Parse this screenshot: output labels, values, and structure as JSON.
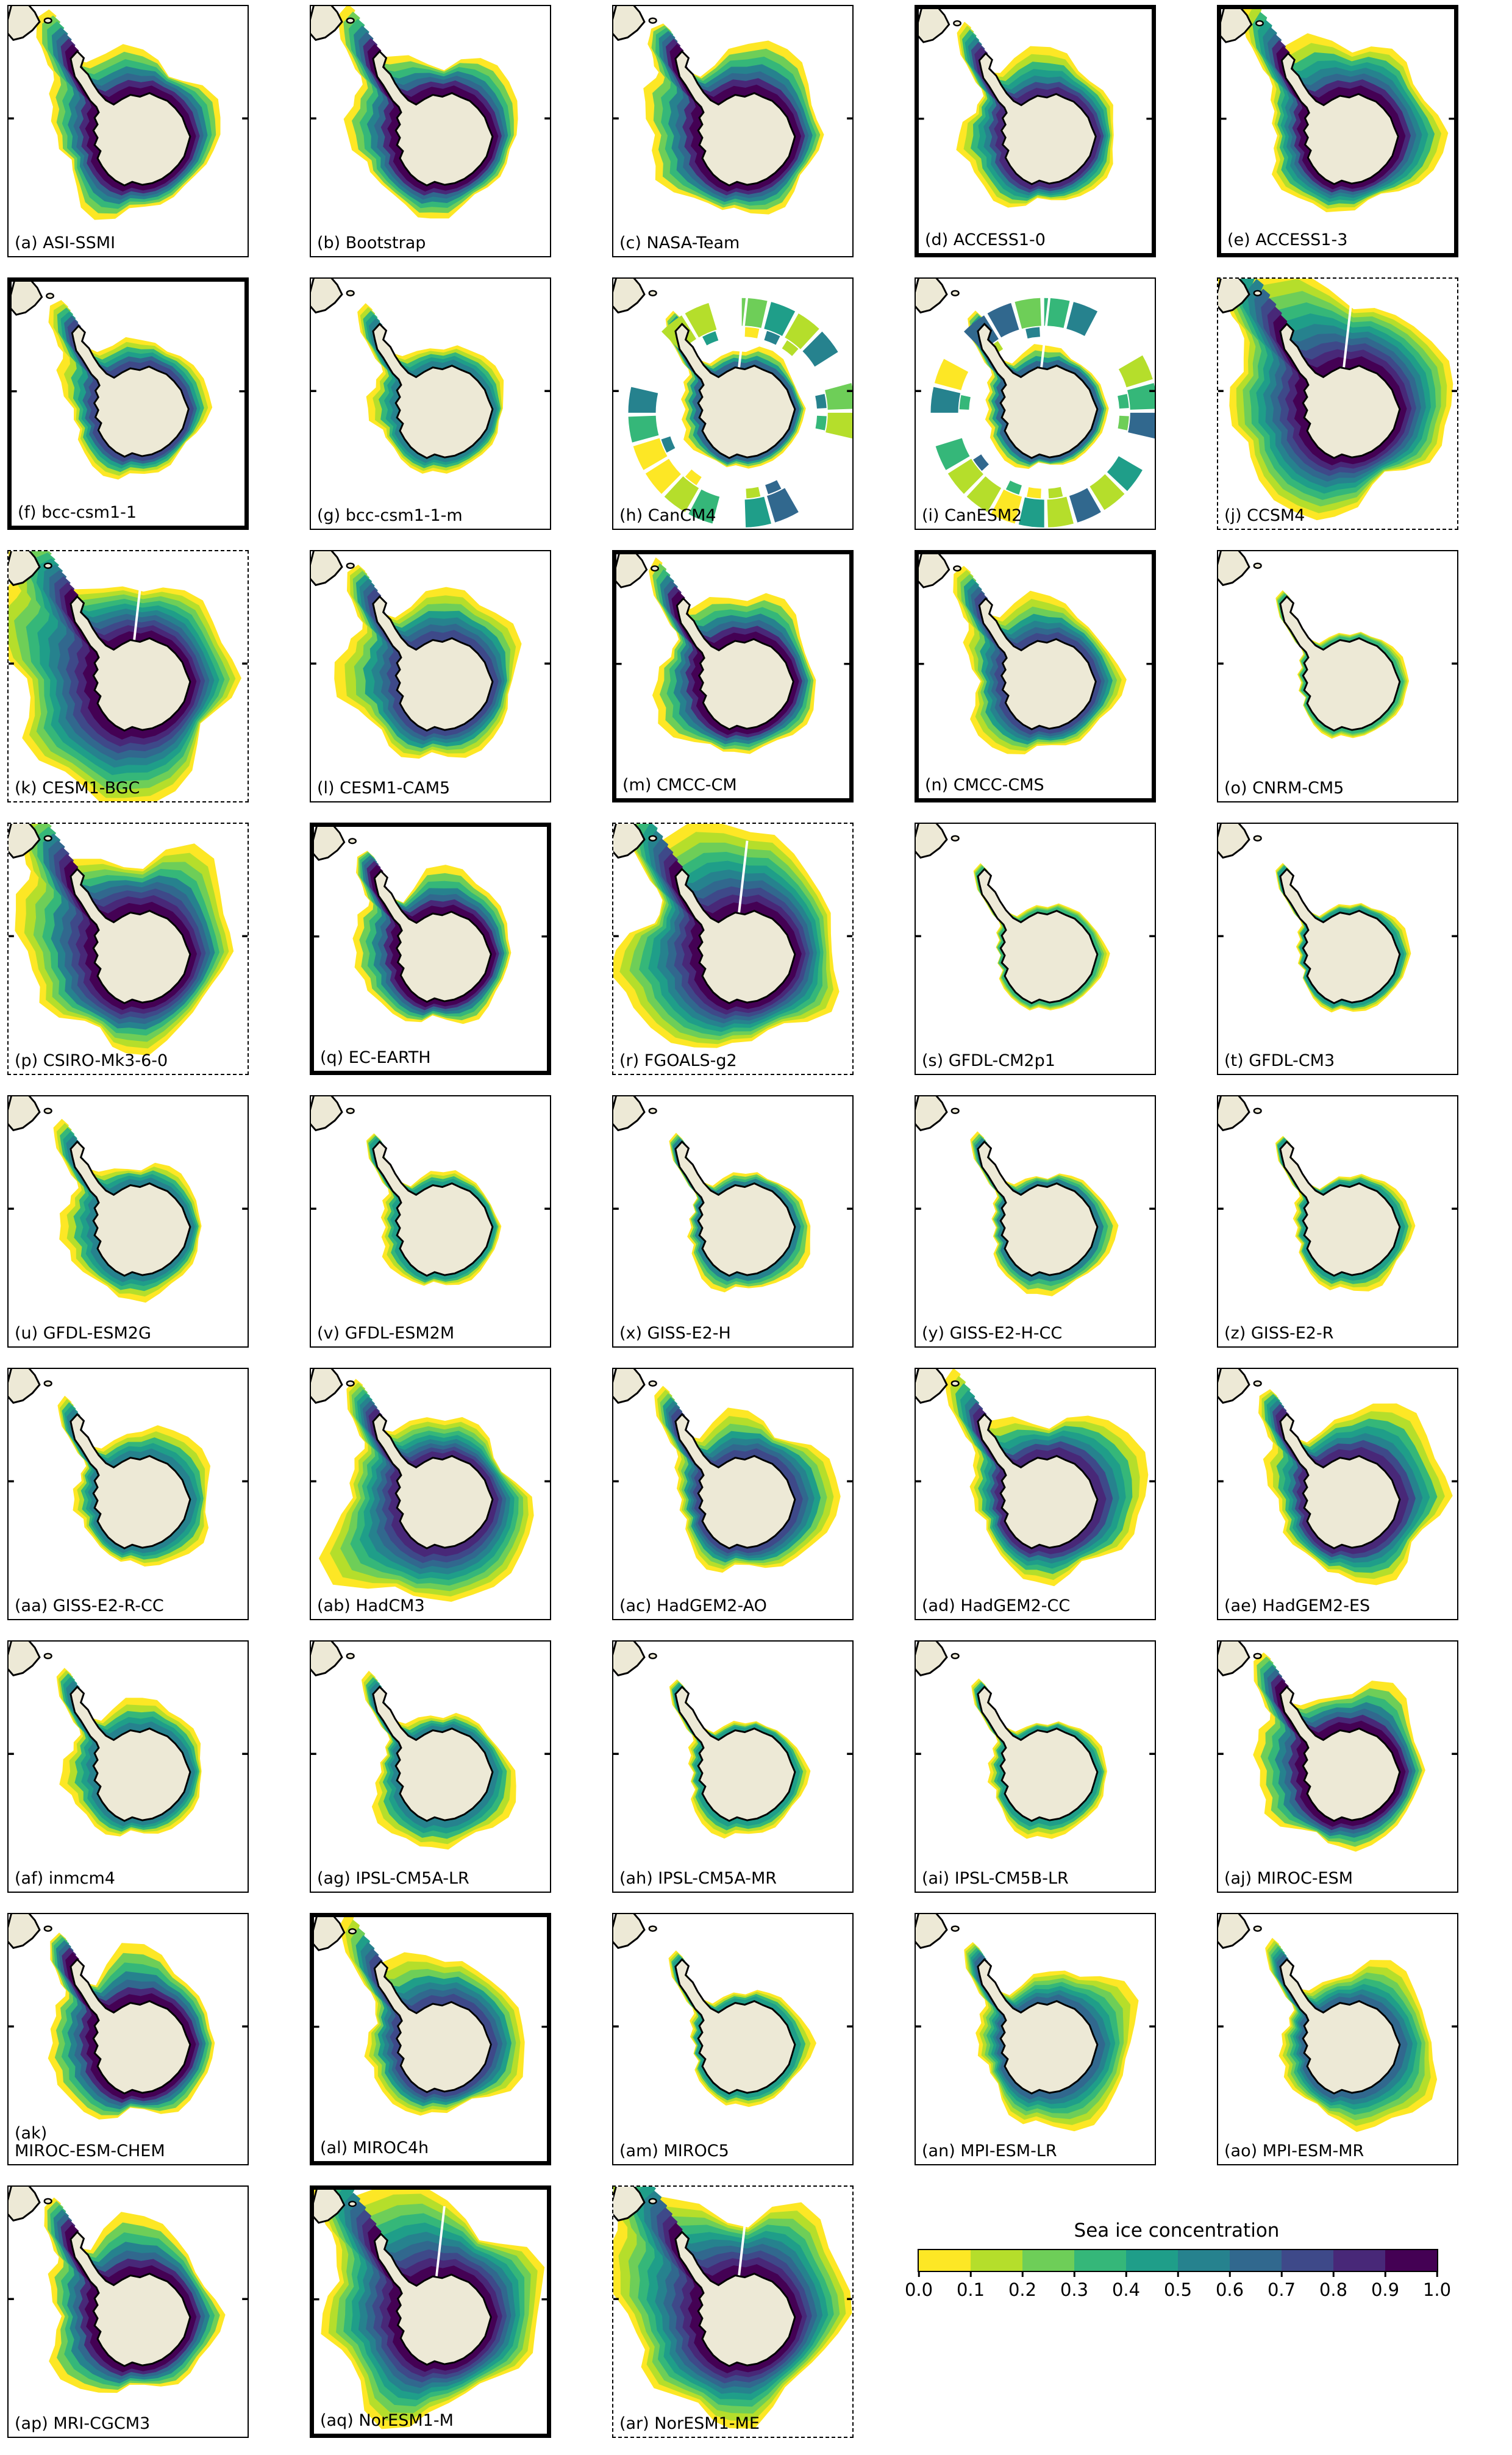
{
  "chart_data": {
    "type": "heatmap",
    "subtype": "polar-stereographic sea ice concentration maps (Antarctica)",
    "title": "Sea ice concentration",
    "value_range": [
      0.0,
      1.0
    ],
    "colormap": "viridis reversed (yellow = 0.0, dark purple = 1.0)",
    "land_color": "#ede9d6",
    "coast_color": "#000000",
    "grid": {
      "columns": 5,
      "rows": 9,
      "panel_count": 43
    },
    "colorbar": {
      "title": "Sea ice concentration",
      "position": "bottom-right",
      "tick_labels": [
        "0.0",
        "0.1",
        "0.2",
        "0.3",
        "0.4",
        "0.5",
        "0.6",
        "0.7",
        "0.8",
        "0.9",
        "1.0"
      ],
      "colors": [
        "#fde725",
        "#b5de2b",
        "#6ece58",
        "#35b779",
        "#1f9e89",
        "#26828e",
        "#31688e",
        "#3e4989",
        "#482878",
        "#440154"
      ]
    },
    "panels": [
      {
        "id": "a",
        "label": "(a) ASI-SSMI",
        "frame": "solid",
        "style": "rings",
        "extent": 0.5,
        "max_concentration": 1.0,
        "bias": "nw"
      },
      {
        "id": "b",
        "label": "(b) Bootstrap",
        "frame": "solid",
        "style": "rings",
        "extent": 0.5,
        "max_concentration": 1.0,
        "bias": "nw"
      },
      {
        "id": "c",
        "label": "(c) NASA-Team",
        "frame": "solid",
        "style": "rings",
        "extent": 0.55,
        "max_concentration": 1.0,
        "bias": "nw"
      },
      {
        "id": "d",
        "label": "(d) ACCESS1-0",
        "frame": "thick",
        "style": "rings",
        "extent": 0.45,
        "max_concentration": 0.9,
        "bias": "nw"
      },
      {
        "id": "e",
        "label": "(e) ACCESS1-3",
        "frame": "thick",
        "style": "rings",
        "extent": 0.6,
        "max_concentration": 1.0,
        "bias": "n"
      },
      {
        "id": "f",
        "label": "(f) bcc-csm1-1",
        "frame": "thick",
        "style": "rings",
        "extent": 0.35,
        "max_concentration": 0.8,
        "bias": "nw"
      },
      {
        "id": "g",
        "label": "(g) bcc-csm1-1-m",
        "frame": "solid",
        "style": "rings",
        "extent": 0.25,
        "max_concentration": 0.5,
        "bias": "nw"
      },
      {
        "id": "h",
        "label": "(h) CanCM4",
        "frame": "solid",
        "style": "patchy",
        "extent": 0.55,
        "max_concentration": 0.8,
        "bias": "nw"
      },
      {
        "id": "i",
        "label": "(i) CanESM2",
        "frame": "solid",
        "style": "patchy",
        "extent": 0.55,
        "max_concentration": 0.8,
        "bias": "nw"
      },
      {
        "id": "j",
        "label": "(j) CCSM4",
        "frame": "dashed",
        "style": "rings",
        "extent": 0.95,
        "max_concentration": 1.0,
        "bias": "nw"
      },
      {
        "id": "k",
        "label": "(k) CESM1-BGC",
        "frame": "dashed",
        "style": "rings",
        "extent": 0.95,
        "max_concentration": 1.0,
        "bias": "w"
      },
      {
        "id": "l",
        "label": "(l) CESM1-CAM5",
        "frame": "solid",
        "style": "rings",
        "extent": 0.55,
        "max_concentration": 0.8,
        "bias": "nw"
      },
      {
        "id": "m",
        "label": "(m) CMCC-CM",
        "frame": "thick",
        "style": "rings",
        "extent": 0.5,
        "max_concentration": 1.0,
        "bias": "nw"
      },
      {
        "id": "n",
        "label": "(n) CMCC-CMS",
        "frame": "thick",
        "style": "rings",
        "extent": 0.45,
        "max_concentration": 0.8,
        "bias": "nw"
      },
      {
        "id": "o",
        "label": "(o) CNRM-CM5",
        "frame": "solid",
        "style": "rings",
        "extent": 0.08,
        "max_concentration": 0.3,
        "bias": "e"
      },
      {
        "id": "p",
        "label": "(p) CSIRO-Mk3-6-0",
        "frame": "dashed",
        "style": "rings",
        "extent": 0.8,
        "max_concentration": 1.0,
        "bias": "nw"
      },
      {
        "id": "q",
        "label": "(q) EC-EARTH",
        "frame": "thick",
        "style": "rings",
        "extent": 0.45,
        "max_concentration": 1.0,
        "bias": "nw"
      },
      {
        "id": "r",
        "label": "(r) FGOALS-g2",
        "frame": "dashed",
        "style": "rings",
        "extent": 0.9,
        "max_concentration": 1.0,
        "bias": "nw"
      },
      {
        "id": "s",
        "label": "(s) GFDL-CM2p1",
        "frame": "solid",
        "style": "rings",
        "extent": 0.08,
        "max_concentration": 0.3,
        "bias": "e"
      },
      {
        "id": "t",
        "label": "(t) GFDL-CM3",
        "frame": "solid",
        "style": "rings",
        "extent": 0.1,
        "max_concentration": 0.4,
        "bias": "e"
      },
      {
        "id": "u",
        "label": "(u) GFDL-ESM2G",
        "frame": "solid",
        "style": "rings",
        "extent": 0.3,
        "max_concentration": 0.5,
        "bias": "w"
      },
      {
        "id": "v",
        "label": "(v) GFDL-ESM2M",
        "frame": "solid",
        "style": "rings",
        "extent": 0.15,
        "max_concentration": 0.4,
        "bias": "w"
      },
      {
        "id": "x",
        "label": "(x) GISS-E2-H",
        "frame": "solid",
        "style": "rings",
        "extent": 0.18,
        "max_concentration": 0.5,
        "bias": "se"
      },
      {
        "id": "y",
        "label": "(y) GISS-E2-H-CC",
        "frame": "solid",
        "style": "rings",
        "extent": 0.18,
        "max_concentration": 0.5,
        "bias": "se"
      },
      {
        "id": "z",
        "label": "(z) GISS-E2-R",
        "frame": "solid",
        "style": "rings",
        "extent": 0.15,
        "max_concentration": 0.4,
        "bias": "se"
      },
      {
        "id": "aa",
        "label": "(aa) GISS-E2-R-CC",
        "frame": "solid",
        "style": "rings",
        "extent": 0.3,
        "max_concentration": 0.6,
        "bias": "ne"
      },
      {
        "id": "ab",
        "label": "(ab) HadCM3",
        "frame": "solid",
        "style": "rings",
        "extent": 0.7,
        "max_concentration": 0.9,
        "bias": "sw"
      },
      {
        "id": "ac",
        "label": "(ac) HadGEM2-AO",
        "frame": "solid",
        "style": "rings",
        "extent": 0.45,
        "max_concentration": 0.8,
        "bias": "ne"
      },
      {
        "id": "ad",
        "label": "(ad) HadGEM2-CC",
        "frame": "solid",
        "style": "rings",
        "extent": 0.55,
        "max_concentration": 0.9,
        "bias": "ne"
      },
      {
        "id": "ae",
        "label": "(ae) HadGEM2-ES",
        "frame": "solid",
        "style": "rings",
        "extent": 0.55,
        "max_concentration": 0.9,
        "bias": "ne"
      },
      {
        "id": "af",
        "label": "(af) inmcm4",
        "frame": "solid",
        "style": "rings",
        "extent": 0.3,
        "max_concentration": 0.6,
        "bias": "nw"
      },
      {
        "id": "ag",
        "label": "(ag) IPSL-CM5A-LR",
        "frame": "solid",
        "style": "rings",
        "extent": 0.3,
        "max_concentration": 0.6,
        "bias": "s"
      },
      {
        "id": "ah",
        "label": "(ah) IPSL-CM5A-MR",
        "frame": "solid",
        "style": "rings",
        "extent": 0.15,
        "max_concentration": 0.4,
        "bias": "s"
      },
      {
        "id": "ai",
        "label": "(ai) IPSL-CM5B-LR",
        "frame": "solid",
        "style": "rings",
        "extent": 0.15,
        "max_concentration": 0.4,
        "bias": "s"
      },
      {
        "id": "aj",
        "label": "(aj) MIROC-ESM",
        "frame": "solid",
        "style": "rings",
        "extent": 0.5,
        "max_concentration": 1.0,
        "bias": "nw"
      },
      {
        "id": "ak",
        "label": "(ak)\nMIROC-ESM-CHEM",
        "frame": "solid",
        "style": "rings",
        "extent": 0.5,
        "max_concentration": 1.0,
        "bias": "nw"
      },
      {
        "id": "al",
        "label": "(al) MIROC4h",
        "frame": "thick",
        "style": "rings",
        "extent": 0.5,
        "max_concentration": 0.8,
        "bias": "n"
      },
      {
        "id": "am",
        "label": "(am) MIROC5",
        "frame": "solid",
        "style": "rings",
        "extent": 0.15,
        "max_concentration": 0.4,
        "bias": "e"
      },
      {
        "id": "an",
        "label": "(an) MPI-ESM-LR",
        "frame": "solid",
        "style": "rings",
        "extent": 0.45,
        "max_concentration": 0.7,
        "bias": "e"
      },
      {
        "id": "ao",
        "label": "(ao) MPI-ESM-MR",
        "frame": "solid",
        "style": "rings",
        "extent": 0.45,
        "max_concentration": 0.7,
        "bias": "e"
      },
      {
        "id": "ap",
        "label": "(ap) MRI-CGCM3",
        "frame": "solid",
        "style": "rings",
        "extent": 0.55,
        "max_concentration": 1.0,
        "bias": "nw"
      },
      {
        "id": "aq",
        "label": "(aq) NorESM1-M",
        "frame": "thick",
        "style": "rings",
        "extent": 0.95,
        "max_concentration": 1.0,
        "bias": "nw"
      },
      {
        "id": "ar",
        "label": "(ar) NorESM1-ME",
        "frame": "dashed",
        "style": "rings",
        "extent": 0.95,
        "max_concentration": 1.0,
        "bias": "nw"
      }
    ]
  }
}
